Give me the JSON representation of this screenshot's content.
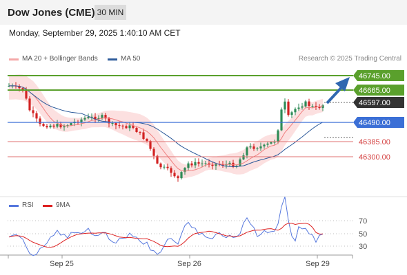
{
  "header": {
    "title": "Dow Jones (CME)",
    "timeframe": "30 MIN"
  },
  "datetime": "Monday, September 29, 2025 1:40:10 AM CET",
  "legend": {
    "ma20": "MA 20 + Bollinger Bands",
    "ma20_color": "#f4a7a7",
    "ma50": "MA 50",
    "ma50_color": "#2c5a9a",
    "credit": "Research © 2025 Trading Central"
  },
  "colors": {
    "bull": "#2e8b57",
    "bear": "#d22222",
    "resistance": "#5aa02c",
    "support": "#d44040",
    "pivot": "#3b6fd6",
    "price": "#333333"
  },
  "levels": {
    "r2": "46745.00",
    "r1": "46665.00",
    "last": "46597.00",
    "pivot": "46490.00",
    "s1": "46385.00",
    "s2": "46300.00"
  },
  "rsi_panel": {
    "rsi_label": "RSI",
    "rsi_color": "#5577dd",
    "ma9_label": "9MA",
    "ma9_color": "#dd2222",
    "levels": [
      "70",
      "50",
      "30"
    ]
  },
  "x_axis": [
    "Sep 25",
    "Sep 26",
    "Sep 29"
  ]
}
